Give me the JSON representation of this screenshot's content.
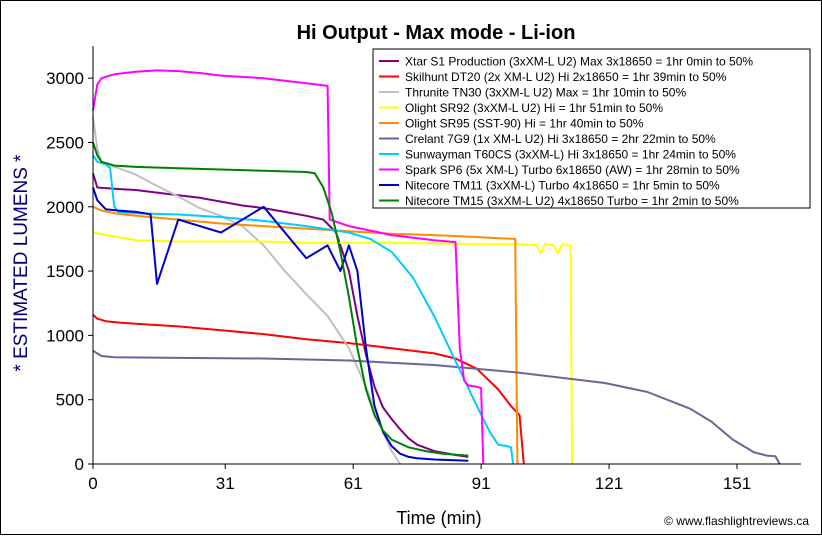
{
  "chart_data": {
    "type": "line",
    "title": "Hi Output - Max mode - Li-ion",
    "xlabel": "Time (min)",
    "ylabel": "* ESTIMATED LUMENS *",
    "credit": "© www.flashlightreviews.ca",
    "xlim": [
      0,
      166
    ],
    "ylim": [
      0,
      3250
    ],
    "xticks": [
      0,
      31,
      61,
      91,
      121,
      151
    ],
    "yticks": [
      0,
      500,
      1000,
      1500,
      2000,
      2500,
      3000
    ],
    "grid": false,
    "legend_position": "top-right",
    "series": [
      {
        "name": "Xtar S1 Production (3xXM-L U2) Max 3x18650 = 1hr 0min to 50%",
        "color": "#800080",
        "x": [
          0,
          1,
          5,
          10,
          15,
          20,
          25,
          30,
          35,
          40,
          45,
          50,
          54,
          57,
          60,
          62,
          64,
          66,
          68,
          70,
          72,
          74,
          76,
          80,
          85,
          88
        ],
        "y": [
          2260,
          2150,
          2140,
          2130,
          2110,
          2090,
          2070,
          2040,
          2010,
          1990,
          1960,
          1930,
          1900,
          1800,
          1500,
          1150,
          850,
          600,
          440,
          350,
          270,
          200,
          150,
          100,
          70,
          55
        ]
      },
      {
        "name": "Skilhunt DT20 (2x XM-L U2) Hi 2x18650 = 1hr 39min to 50%",
        "color": "#ff0000",
        "x": [
          0,
          1,
          3,
          6,
          10,
          20,
          30,
          40,
          50,
          60,
          70,
          80,
          85,
          90,
          95,
          98,
          100,
          101
        ],
        "y": [
          1160,
          1130,
          1110,
          1100,
          1090,
          1070,
          1040,
          1010,
          970,
          940,
          900,
          860,
          820,
          740,
          580,
          450,
          380,
          0
        ]
      },
      {
        "name": "Thrunite TN30 (3xXM-L U2) Max = 1hr 10min to 50%",
        "color": "#c0c0c0",
        "x": [
          0,
          1,
          2,
          4,
          6,
          10,
          14,
          20,
          25,
          30,
          35,
          40,
          45,
          50,
          55,
          60,
          64,
          68,
          70,
          72
        ],
        "y": [
          2700,
          2450,
          2350,
          2320,
          2300,
          2250,
          2180,
          2080,
          1990,
          1930,
          1850,
          1700,
          1500,
          1320,
          1150,
          900,
          600,
          250,
          100,
          0
        ]
      },
      {
        "name": "Olight SR92 (3xXM-L U2) Hi = 1hr 51min to 50%",
        "color": "#ffff00",
        "x": [
          0,
          5,
          10,
          20,
          30,
          40,
          50,
          60,
          70,
          80,
          90,
          100,
          104,
          105,
          106,
          108,
          109,
          110,
          111,
          112,
          112.3
        ],
        "y": [
          1800,
          1770,
          1740,
          1730,
          1730,
          1730,
          1720,
          1720,
          1720,
          1715,
          1710,
          1710,
          1700,
          1640,
          1710,
          1700,
          1640,
          1710,
          1700,
          1700,
          0
        ]
      },
      {
        "name": "Olight SR95 (SST-90) Hi = 1hr 40min to 50%",
        "color": "#ff8c00",
        "x": [
          0,
          2,
          5,
          10,
          20,
          30,
          40,
          50,
          60,
          70,
          80,
          90,
          95,
          99,
          99.5
        ],
        "y": [
          2000,
          1970,
          1950,
          1930,
          1900,
          1870,
          1850,
          1830,
          1810,
          1790,
          1780,
          1765,
          1755,
          1750,
          0
        ]
      },
      {
        "name": "Crelant 7G9 (1x XM-L U2) Hi 3x18650 = 2hr 22min to 50%",
        "color": "#666699",
        "x": [
          0,
          2,
          5,
          20,
          40,
          60,
          80,
          100,
          120,
          130,
          140,
          145,
          150,
          155,
          158,
          160,
          161
        ],
        "y": [
          880,
          840,
          830,
          825,
          820,
          805,
          770,
          710,
          630,
          560,
          430,
          330,
          190,
          90,
          65,
          60,
          0
        ]
      },
      {
        "name": "Sunwayman T60CS (3xXM-L) Hi 3x18650 = 1hr 24min to 50%",
        "color": "#00ccff",
        "x": [
          0,
          1,
          3,
          4,
          5,
          6,
          10,
          20,
          30,
          40,
          50,
          60,
          65,
          70,
          75,
          80,
          85,
          90,
          93,
          95,
          97,
          98,
          98.5
        ],
        "y": [
          2400,
          2350,
          2330,
          2300,
          2000,
          1960,
          1950,
          1940,
          1920,
          1890,
          1850,
          1800,
          1750,
          1650,
          1450,
          1150,
          800,
          450,
          250,
          150,
          140,
          130,
          0
        ]
      },
      {
        "name": "Spark SP6 (5x XM-L) Turbo 6x18650 (AW) = 1hr 28min to 50%",
        "color": "#ff00ff",
        "x": [
          0,
          1,
          2,
          5,
          10,
          15,
          20,
          25,
          30,
          40,
          50,
          55,
          55.5,
          60,
          70,
          80,
          85,
          86,
          87,
          88,
          90,
          91,
          91.5
        ],
        "y": [
          2750,
          2950,
          3000,
          3030,
          3050,
          3060,
          3055,
          3040,
          3020,
          3000,
          2960,
          2940,
          1900,
          1850,
          1780,
          1740,
          1725,
          900,
          650,
          610,
          600,
          590,
          0
        ]
      },
      {
        "name": "Nitecore TM11 (3xXM-L) Turbo 4x18650 = 1hr 5min to 50%",
        "color": "#0000cc",
        "x": [
          0,
          1,
          3,
          6,
          10,
          12,
          13.5,
          15,
          20,
          30,
          40,
          50,
          55,
          58,
          60,
          62,
          63,
          64,
          66,
          68,
          70,
          72,
          74,
          76,
          78,
          80,
          84,
          88
        ],
        "y": [
          2150,
          2050,
          1980,
          1970,
          1960,
          1950,
          1940,
          1400,
          1900,
          1800,
          2000,
          1600,
          1700,
          1500,
          1700,
          1500,
          1200,
          900,
          450,
          250,
          140,
          80,
          55,
          45,
          40,
          35,
          30,
          25
        ]
      },
      {
        "name": "Nitecore TM15 (3xXM-L U2) 4x18650 Turbo = 1hr 2min to 50%",
        "color": "#008000",
        "x": [
          0,
          1,
          2,
          5,
          10,
          20,
          30,
          40,
          50,
          52,
          54,
          56,
          58,
          60,
          62,
          64,
          66,
          68,
          70,
          74,
          78,
          82,
          88
        ],
        "y": [
          2500,
          2400,
          2350,
          2320,
          2310,
          2300,
          2290,
          2280,
          2270,
          2260,
          2150,
          1950,
          1650,
          1300,
          900,
          580,
          380,
          260,
          190,
          130,
          100,
          80,
          65
        ]
      }
    ]
  }
}
